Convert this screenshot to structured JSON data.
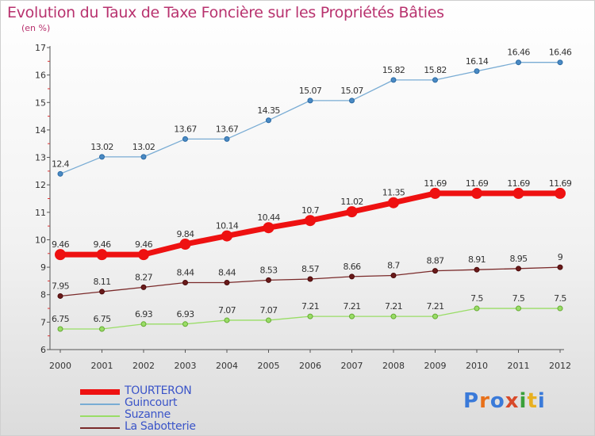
{
  "title": "Evolution du Taux de Taxe Foncière sur les Propriétés Bâties",
  "subtitle": "(en %)",
  "colors": {
    "TOURTERON": "#ee1111",
    "Guincourt": "#79acd4",
    "Suzanne": "#99dd66",
    "La Sabotterie": "#7a2a2a",
    "title": "#b8326e",
    "legend_text": "#3a54c8"
  },
  "logo": {
    "text": "Proxiti",
    "letter_colors": [
      "#3a7ad9",
      "#e8701a",
      "#3a7ad9",
      "#d84a2a",
      "#3aa03a",
      "#e8b020",
      "#3a7ad9"
    ]
  },
  "chart_data": {
    "type": "line",
    "x": [
      "2000",
      "2001",
      "2002",
      "2003",
      "2004",
      "2005",
      "2006",
      "2007",
      "2008",
      "2009",
      "2010",
      "2011",
      "2012"
    ],
    "ylim": [
      6,
      17
    ],
    "yticks": [
      "6",
      "7",
      "8",
      "9",
      "10",
      "11",
      "12",
      "13",
      "14",
      "15",
      "16",
      "17"
    ],
    "grid": false,
    "legend_position": "bottom-left",
    "series": [
      {
        "name": "TOURTERON",
        "values": [
          9.46,
          9.46,
          9.46,
          9.84,
          10.14,
          10.44,
          10.7,
          11.02,
          11.35,
          11.69,
          11.69,
          11.69,
          11.69
        ],
        "labels": [
          "9.46",
          "9.46",
          "9.46",
          "9.84",
          "10.14",
          "10.44",
          "10.7",
          "11.02",
          "11.35",
          "11.69",
          "11.69",
          "11.69",
          "11.69"
        ]
      },
      {
        "name": "Guincourt",
        "values": [
          12.4,
          13.02,
          13.02,
          13.67,
          13.67,
          14.35,
          15.07,
          15.07,
          15.82,
          15.82,
          16.14,
          16.46,
          16.46
        ],
        "labels": [
          "12.4",
          "13.02",
          "13.02",
          "13.67",
          "13.67",
          "14.35",
          "15.07",
          "15.07",
          "15.82",
          "15.82",
          "16.14",
          "16.46",
          "16.46"
        ]
      },
      {
        "name": "Suzanne",
        "values": [
          6.75,
          6.75,
          6.93,
          6.93,
          7.07,
          7.07,
          7.21,
          7.21,
          7.21,
          7.21,
          7.5,
          7.5,
          7.5
        ],
        "labels": [
          "6.75",
          "6.75",
          "6.93",
          "6.93",
          "7.07",
          "7.07",
          "7.21",
          "7.21",
          "7.21",
          "7.21",
          "7.5",
          "7.5",
          "7.5"
        ]
      },
      {
        "name": "La Sabotterie",
        "values": [
          7.95,
          8.11,
          8.27,
          8.44,
          8.44,
          8.53,
          8.57,
          8.66,
          8.7,
          8.87,
          8.91,
          8.95,
          9
        ],
        "labels": [
          "7.95",
          "8.11",
          "8.27",
          "8.44",
          "8.44",
          "8.53",
          "8.57",
          "8.66",
          "8.7",
          "8.87",
          "8.91",
          "8.95",
          "9"
        ]
      }
    ]
  }
}
